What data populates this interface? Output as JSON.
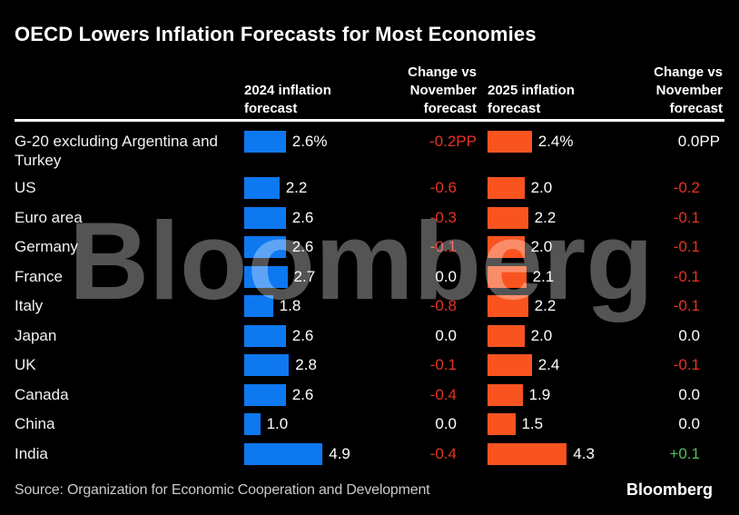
{
  "title": "OECD Lowers Inflation Forecasts for Most Economies",
  "headers": [
    {
      "lines": [
        "2024 inflation",
        "forecast"
      ]
    },
    {
      "lines": [
        "Change vs",
        "November",
        "forecast"
      ]
    },
    {
      "lines": [
        "2025 inflation",
        "forecast"
      ]
    },
    {
      "lines": [
        "Change vs",
        "November",
        "forecast"
      ]
    }
  ],
  "colors": {
    "bar_2024": "#0e78f0",
    "bar_2025": "#f95420",
    "negative": "#e73223",
    "positive": "#4fc35c",
    "neutral": "#ffffff"
  },
  "watermark": "Bloomberg",
  "footer": {
    "source": "Source: Organization for Economic Cooperation and Development",
    "logo": "Bloomberg"
  },
  "chart_data": {
    "type": "bar",
    "title": "OECD Lowers Inflation Forecasts for Most Economies",
    "categories": [
      "G-20 excluding Argentina and Turkey",
      "US",
      "Euro area",
      "Germany",
      "France",
      "Italy",
      "Japan",
      "UK",
      "Canada",
      "China",
      "India"
    ],
    "series": [
      {
        "name": "2024 inflation forecast",
        "unit": "%",
        "values": [
          2.6,
          2.2,
          2.6,
          2.6,
          2.7,
          1.8,
          2.6,
          2.8,
          2.6,
          1.0,
          4.9
        ]
      },
      {
        "name": "Change vs November forecast (2024)",
        "unit": "PP",
        "values": [
          -0.2,
          -0.6,
          -0.3,
          -0.1,
          0.0,
          -0.8,
          0.0,
          -0.1,
          -0.4,
          0.0,
          -0.4
        ]
      },
      {
        "name": "2025 inflation forecast",
        "unit": "%",
        "values": [
          2.4,
          2.0,
          2.2,
          2.0,
          2.1,
          2.2,
          2.0,
          2.4,
          1.9,
          1.5,
          4.3
        ]
      },
      {
        "name": "Change vs November forecast (2025)",
        "unit": "PP",
        "values": [
          0.0,
          -0.2,
          -0.1,
          -0.1,
          -0.1,
          -0.1,
          0.0,
          -0.1,
          0.0,
          0.0,
          0.1
        ]
      }
    ],
    "legend_position": "none",
    "grid": false,
    "source": "Organization for Economic Cooperation and Development"
  },
  "rows": [
    {
      "label_lines": [
        "G-20 excluding Argentina and",
        "Turkey"
      ],
      "v2024": 2.6,
      "v2024_label": "2.6%",
      "chg2024": "-0.2PP",
      "chg2024_sign": "neg",
      "v2025": 2.4,
      "v2025_label": "2.4%",
      "chg2025": "0.0PP",
      "chg2025_sign": "zero",
      "has_unit": true
    },
    {
      "label_lines": [
        "US"
      ],
      "v2024": 2.2,
      "v2024_label": "2.2",
      "chg2024": "-0.6",
      "chg2024_sign": "neg",
      "v2025": 2.0,
      "v2025_label": "2.0",
      "chg2025": "-0.2",
      "chg2025_sign": "neg",
      "has_unit": false
    },
    {
      "label_lines": [
        "Euro area"
      ],
      "v2024": 2.6,
      "v2024_label": "2.6",
      "chg2024": "-0.3",
      "chg2024_sign": "neg",
      "v2025": 2.2,
      "v2025_label": "2.2",
      "chg2025": "-0.1",
      "chg2025_sign": "neg",
      "has_unit": false
    },
    {
      "label_lines": [
        "Germany"
      ],
      "v2024": 2.6,
      "v2024_label": "2.6",
      "chg2024": "-0.1",
      "chg2024_sign": "neg",
      "v2025": 2.0,
      "v2025_label": "2.0",
      "chg2025": "-0.1",
      "chg2025_sign": "neg",
      "has_unit": false
    },
    {
      "label_lines": [
        "France"
      ],
      "v2024": 2.7,
      "v2024_label": "2.7",
      "chg2024": "0.0",
      "chg2024_sign": "zero",
      "v2025": 2.1,
      "v2025_label": "2.1",
      "chg2025": "-0.1",
      "chg2025_sign": "neg",
      "has_unit": false
    },
    {
      "label_lines": [
        "Italy"
      ],
      "v2024": 1.8,
      "v2024_label": "1.8",
      "chg2024": "-0.8",
      "chg2024_sign": "neg",
      "v2025": 2.2,
      "v2025_label": "2.2",
      "chg2025": "-0.1",
      "chg2025_sign": "neg",
      "has_unit": false
    },
    {
      "label_lines": [
        "Japan"
      ],
      "v2024": 2.6,
      "v2024_label": "2.6",
      "chg2024": "0.0",
      "chg2024_sign": "zero",
      "v2025": 2.0,
      "v2025_label": "2.0",
      "chg2025": "0.0",
      "chg2025_sign": "zero",
      "has_unit": false
    },
    {
      "label_lines": [
        "UK"
      ],
      "v2024": 2.8,
      "v2024_label": "2.8",
      "chg2024": "-0.1",
      "chg2024_sign": "neg",
      "v2025": 2.4,
      "v2025_label": "2.4",
      "chg2025": "-0.1",
      "chg2025_sign": "neg",
      "has_unit": false
    },
    {
      "label_lines": [
        "Canada"
      ],
      "v2024": 2.6,
      "v2024_label": "2.6",
      "chg2024": "-0.4",
      "chg2024_sign": "neg",
      "v2025": 1.9,
      "v2025_label": "1.9",
      "chg2025": "0.0",
      "chg2025_sign": "zero",
      "has_unit": false
    },
    {
      "label_lines": [
        "China"
      ],
      "v2024": 1.0,
      "v2024_label": "1.0",
      "chg2024": "0.0",
      "chg2024_sign": "zero",
      "v2025": 1.5,
      "v2025_label": "1.5",
      "chg2025": "0.0",
      "chg2025_sign": "zero",
      "has_unit": false
    },
    {
      "label_lines": [
        "India"
      ],
      "v2024": 4.9,
      "v2024_label": "4.9",
      "chg2024": "-0.4",
      "chg2024_sign": "neg",
      "v2025": 4.3,
      "v2025_label": "4.3",
      "chg2025": "+0.1",
      "chg2025_sign": "pos",
      "has_unit": false
    }
  ]
}
